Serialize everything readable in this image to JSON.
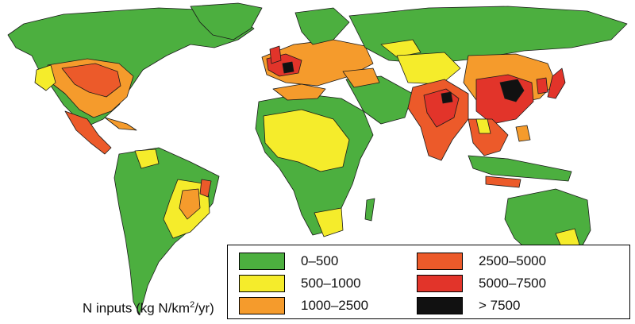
{
  "legend": {
    "items": [
      {
        "label": "0–500",
        "color": "#4caf3f"
      },
      {
        "label": "500–1000",
        "color": "#f5ec2b"
      },
      {
        "label": "1000–2500",
        "color": "#f59b2c"
      },
      {
        "label": "2500–5000",
        "color": "#ec5a2a"
      },
      {
        "label": "5000–7500",
        "color": "#e2342a"
      },
      {
        "label": "> 7500",
        "color": "#111111"
      }
    ]
  },
  "caption": {
    "prefix": "N inputs (kg N/km",
    "sup": "2",
    "suffix": "/yr)"
  },
  "colors": {
    "ocean": "#ffffff",
    "land_low": "#4caf3f",
    "outline": "#1a1a1a"
  }
}
